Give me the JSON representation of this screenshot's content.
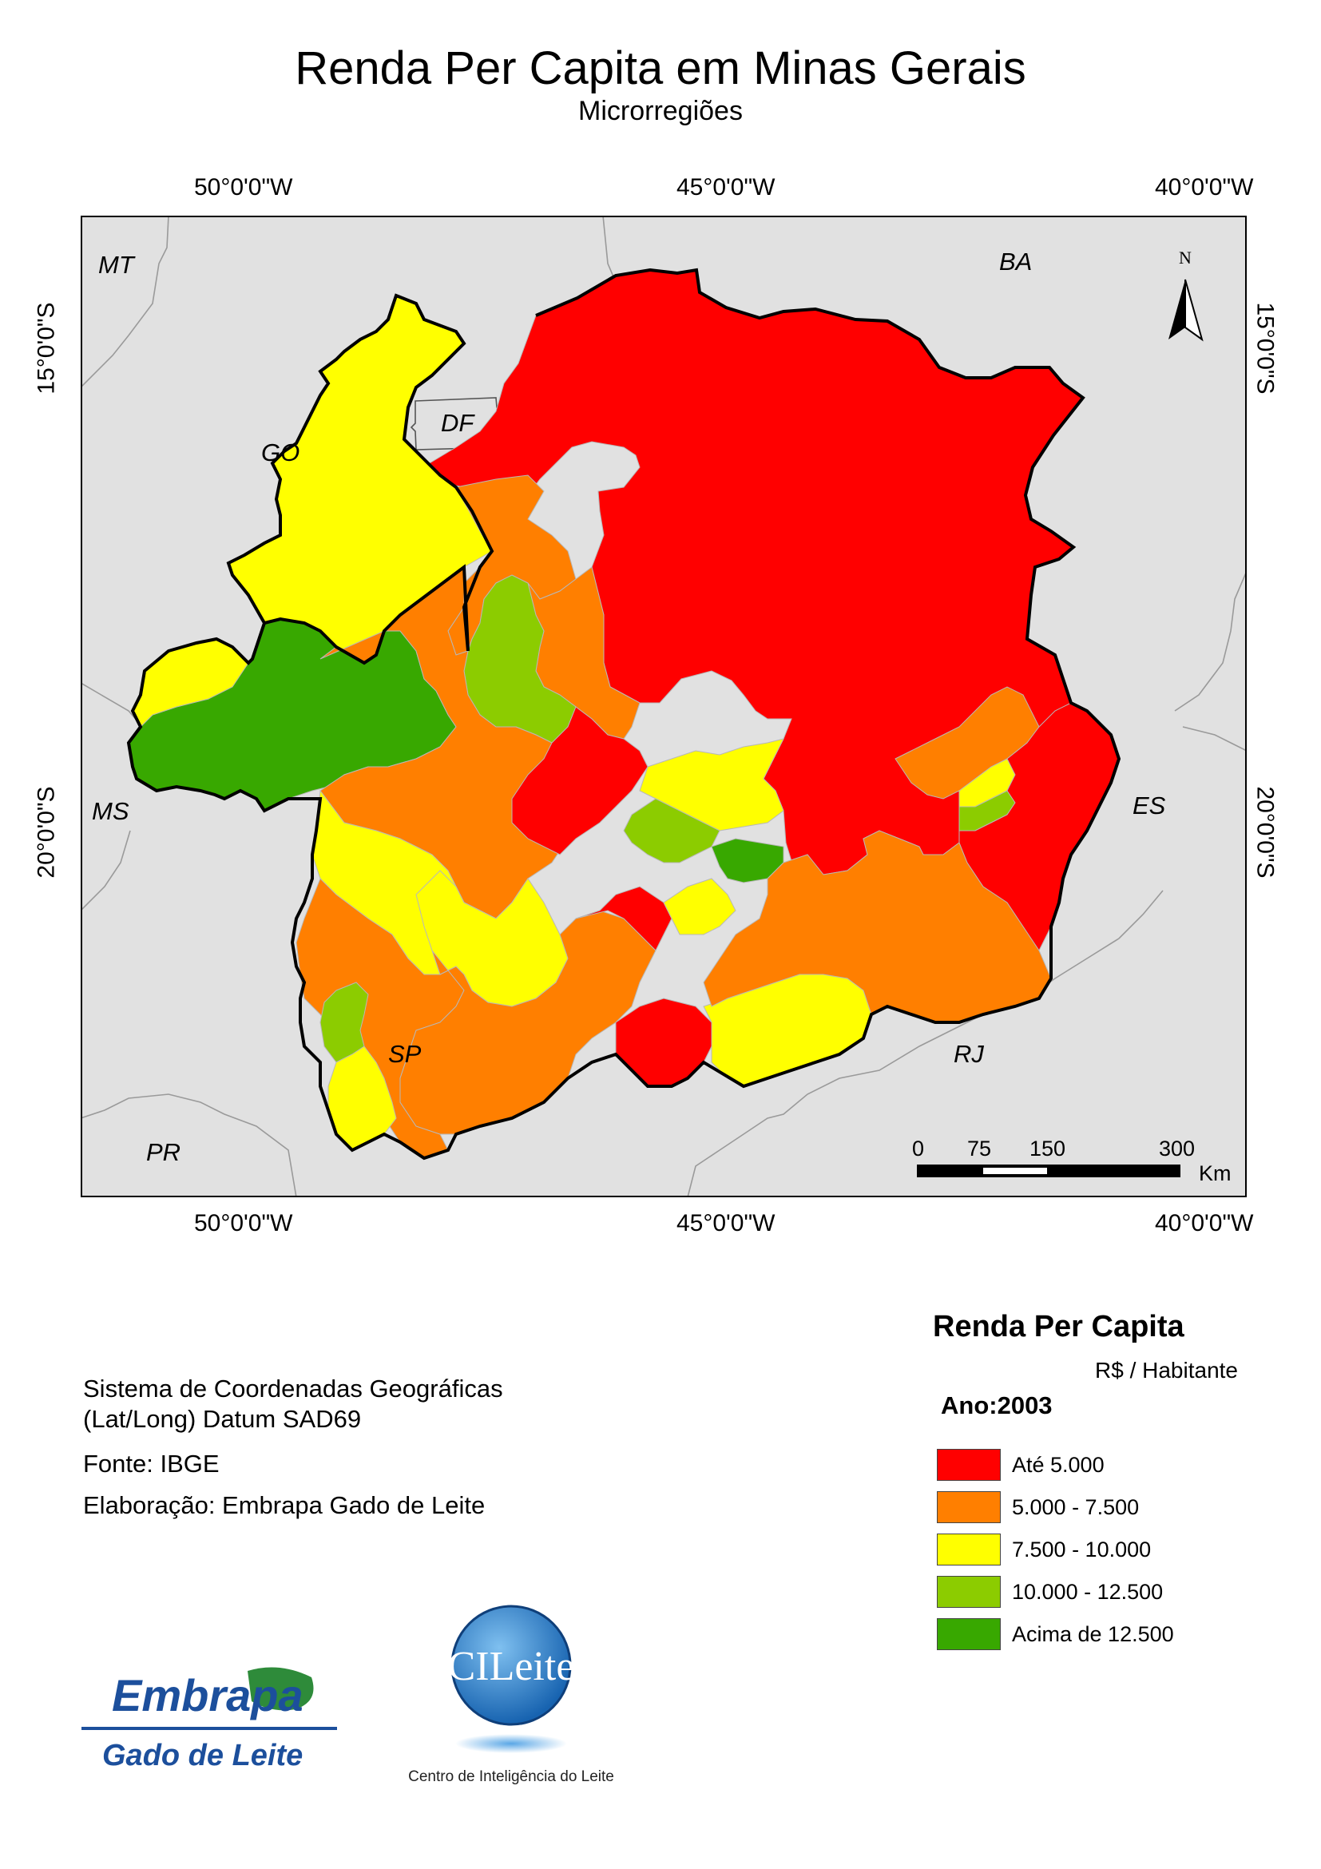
{
  "header": {
    "title": "Renda Per Capita em Minas Gerais",
    "subtitle": "Microrregiões"
  },
  "graticule": {
    "lon_50": "50°0'0\"W",
    "lon_45": "45°0'0\"W",
    "lon_40": "40°0'0\"W",
    "lat_15": "15°0'0\"S",
    "lat_20": "20°0'0\"S"
  },
  "map": {
    "state_labels": {
      "mt": "MT",
      "ba": "BA",
      "go": "GO",
      "df": "DF",
      "ms": "MS",
      "es": "ES",
      "sp": "SP",
      "rj": "RJ",
      "pr": "PR"
    },
    "north_label": "N",
    "scale_bar": {
      "ticks": [
        "0",
        "75",
        "150",
        "300"
      ],
      "unit": "Km"
    },
    "background_color": "#e1e1e1"
  },
  "info": {
    "crs_line1": "Sistema de Coordenadas Geográficas",
    "crs_line2": "(Lat/Long) Datum SAD69",
    "source": "Fonte: IBGE",
    "author": "Elaboração: Embrapa Gado de Leite"
  },
  "legend": {
    "title": "Renda Per Capita",
    "unit": "R$ / Habitante",
    "year": "Ano:2003",
    "classes": [
      {
        "label": "Até 5.000",
        "color": "#ff0000"
      },
      {
        "label": "5.000 - 7.500",
        "color": "#ff7f00"
      },
      {
        "label": "7.500 - 10.000",
        "color": "#ffff00"
      },
      {
        "label": "10.000 - 12.500",
        "color": "#8ccc00"
      },
      {
        "label": "Acima de 12.500",
        "color": "#38a800"
      }
    ]
  },
  "logos": {
    "embrapa_wordmark": "Embrapa",
    "embrapa_sub": "Gado de Leite",
    "cileite_wordmark": "CILeite",
    "cileite_sub": "Centro de Inteligência do Leite"
  }
}
